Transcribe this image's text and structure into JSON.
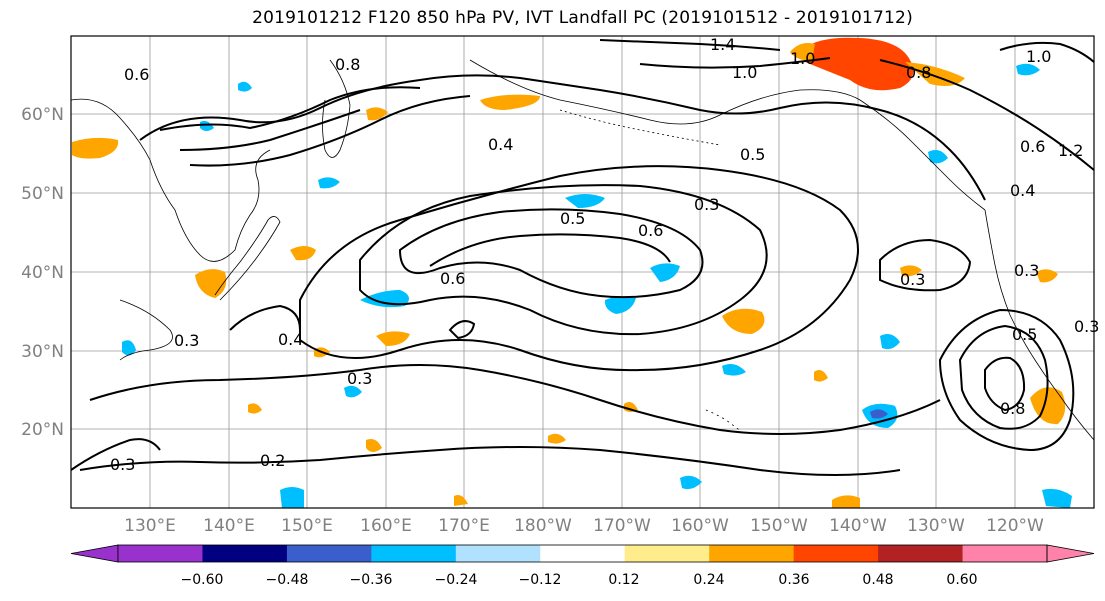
{
  "title": "2019101212 F120 850 hPa PV, IVT Landfall PC (2019101512 - 2019101712)",
  "lat_labels": [
    "60°N",
    "50°N",
    "40°N",
    "30°N",
    "20°N"
  ],
  "lon_labels": [
    "130°E",
    "140°E",
    "150°E",
    "160°E",
    "170°E",
    "180°W",
    "170°W",
    "160°W",
    "150°W",
    "140°W",
    "130°W",
    "120°W"
  ],
  "colorbar": {
    "colors": [
      "#9932cc",
      "#000080",
      "#3a5fcd",
      "#00bfff",
      "#b0e2ff",
      "#ffffff",
      "#ffec8b",
      "#ffa500",
      "#ff4500",
      "#b22222",
      "#ff82ab"
    ],
    "tick_labels": [
      "−0.60",
      "−0.48",
      "−0.36",
      "−0.24",
      "−0.12",
      "0.12",
      "0.24",
      "0.36",
      "0.48",
      "0.60"
    ]
  },
  "contour_labels": [
    "0.6",
    "0.8",
    "1.4",
    "1.0",
    "1.0",
    "0.8",
    "1.0",
    "0.4",
    "0.5",
    "0.3",
    "0.5",
    "0.6",
    "0.6",
    "0.3",
    "0.4",
    "0.3",
    "0.3",
    "0.3",
    "0.2",
    "0.3",
    "0.5",
    "0.8",
    "0.4",
    "0.3",
    "1.2",
    "0.6"
  ]
}
